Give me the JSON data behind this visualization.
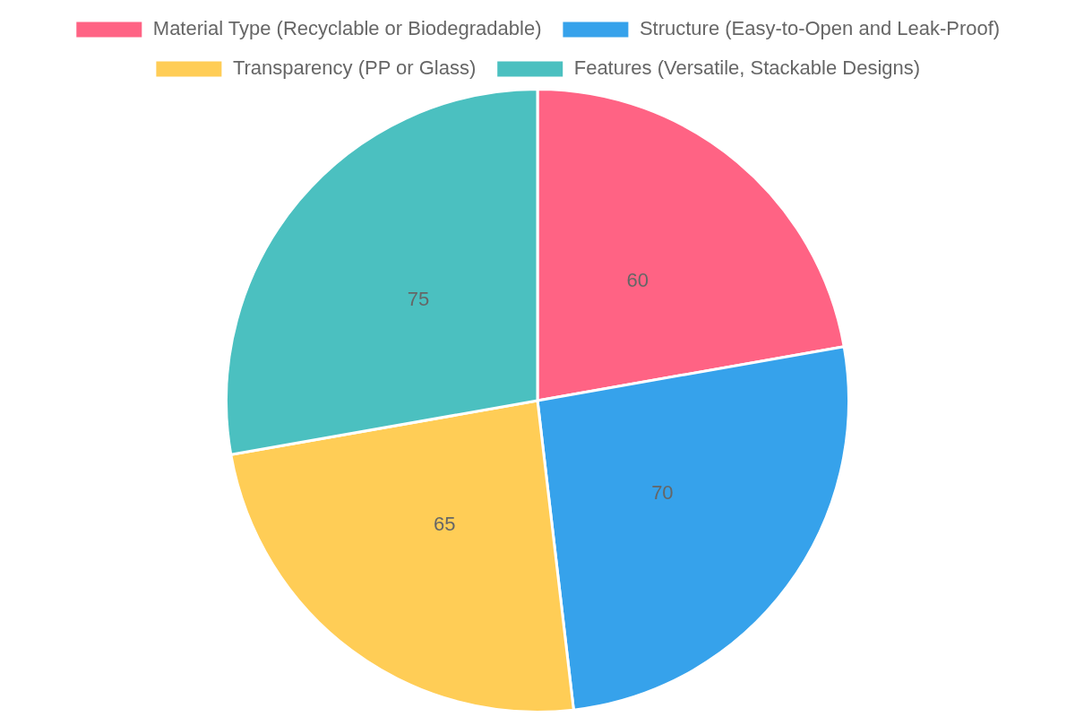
{
  "chart_data": {
    "type": "pie",
    "categories": [
      "Material Type (Recyclable or Biodegradable)",
      "Structure (Easy-to-Open and Leak-Proof)",
      "Transparency (PP or Glass)",
      "Features (Versatile, Stackable Designs)"
    ],
    "values": [
      60,
      70,
      65,
      75
    ],
    "colors": [
      "#ff6384",
      "#36a2eb",
      "#ffcd56",
      "#4bc0c0"
    ],
    "legend": "top",
    "data_labels": true
  }
}
